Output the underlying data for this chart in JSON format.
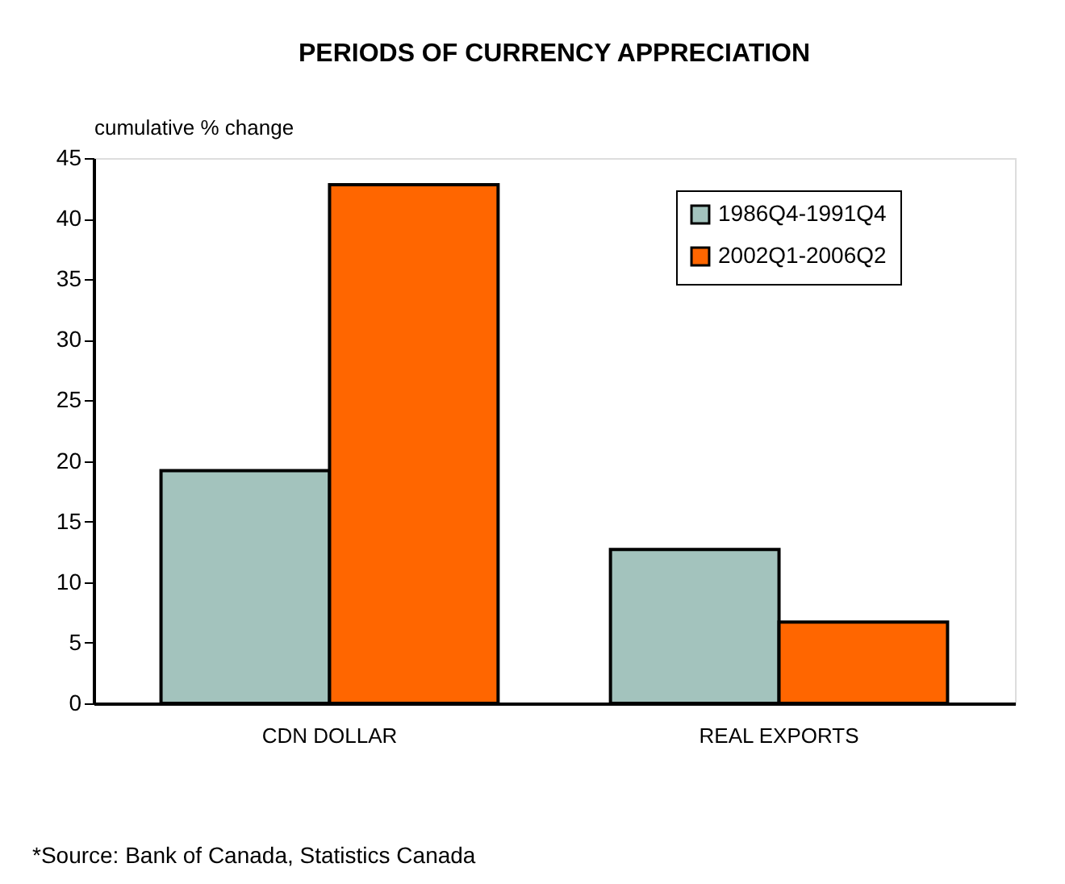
{
  "chart_data": {
    "type": "bar",
    "title": "PERIODS OF CURRENCY APPRECIATION",
    "ylabel": "cumulative % change",
    "categories": [
      "CDN DOLLAR",
      "REAL EXPORTS"
    ],
    "series": [
      {
        "name": "1986Q4-1991Q4",
        "color": "#a3c3bd",
        "values": [
          19.2,
          12.7
        ]
      },
      {
        "name": "2002Q1-2006Q2",
        "color": "#ff6600",
        "values": [
          42.8,
          6.7
        ]
      }
    ],
    "ylim": [
      0,
      45
    ],
    "yticks": [
      0,
      5,
      10,
      15,
      20,
      25,
      30,
      35,
      40,
      45
    ],
    "grid": false,
    "legend": "top right",
    "annotations": [
      "*Source:  Bank of Canada, Statistics Canada"
    ]
  }
}
